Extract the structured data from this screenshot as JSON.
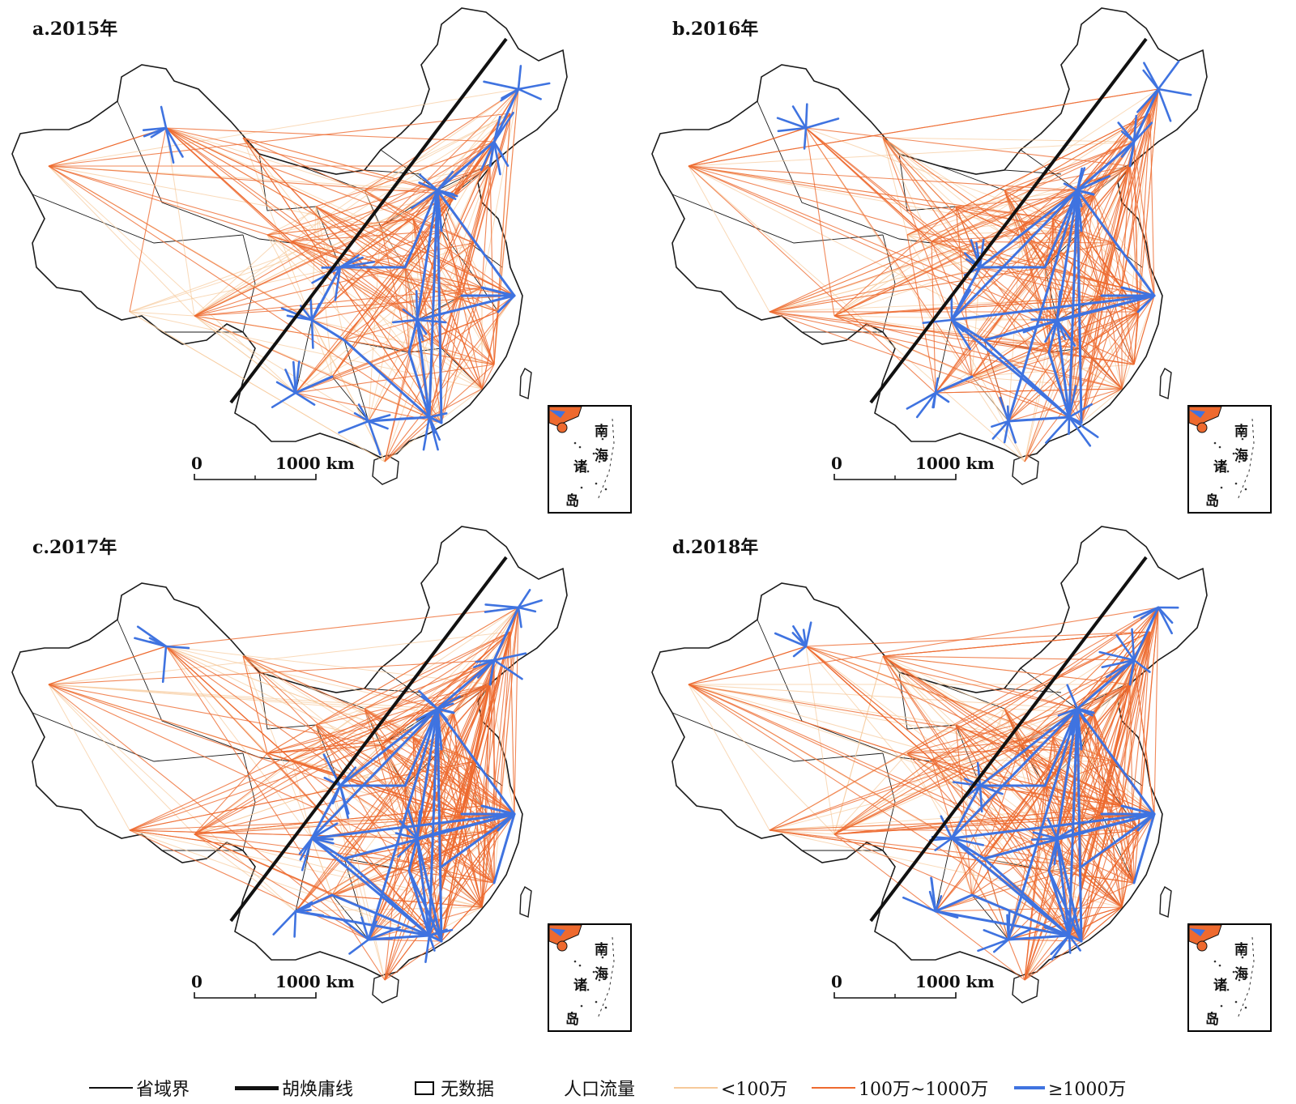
{
  "panels": [
    {
      "title": "a.2015年",
      "network_level": 0
    },
    {
      "title": "b.2016年",
      "network_level": 1
    },
    {
      "title": "c.2017年",
      "network_level": 2
    },
    {
      "title": "d.2018年",
      "network_level": 2
    }
  ],
  "scale": {
    "zero": "0",
    "distance": "1000 km"
  },
  "inset": {
    "chars": [
      "南",
      "海",
      "诸",
      "岛"
    ]
  },
  "legend": {
    "province_boundary": "省域界",
    "hu_line": "胡焕庸线",
    "no_data": "无数据",
    "flow_title": "人口流量",
    "low": "<100万",
    "mid": "100万~1000万",
    "high": "≥1000万"
  },
  "colors": {
    "low": "#f6c99a",
    "mid": "#ee6a2f",
    "high": "#3f73e0",
    "boundary": "#1a1a1a"
  }
}
